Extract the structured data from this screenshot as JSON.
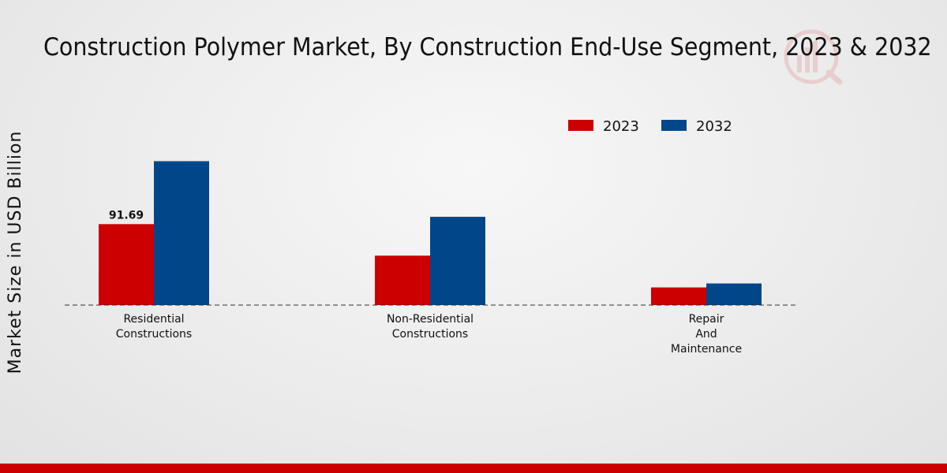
{
  "chart_data": {
    "type": "bar",
    "title": "Construction Polymer Market, By Construction End-Use Segment, 2023 & 2032",
    "xlabel": "",
    "ylabel": "Market Size in USD Billion",
    "categories": [
      [
        "Residential",
        "Constructions"
      ],
      [
        "Non-Residential",
        "Constructions"
      ],
      [
        "Repair",
        "And",
        "Maintenance"
      ]
    ],
    "series": [
      {
        "name": "2023",
        "color": "#cc0000",
        "values": [
          91.69,
          56.0,
          20.0
        ]
      },
      {
        "name": "2032",
        "color": "#00478a",
        "values": [
          163.0,
          100.0,
          24.5
        ]
      }
    ],
    "data_labels": [
      {
        "series": 0,
        "category": 0,
        "text": "91.69"
      }
    ],
    "ylim": [
      0,
      250
    ],
    "grid": false,
    "legend": "top-center",
    "baseline_style": "dashed"
  },
  "brand": {
    "bottom_bar_color": "#cc0000"
  }
}
